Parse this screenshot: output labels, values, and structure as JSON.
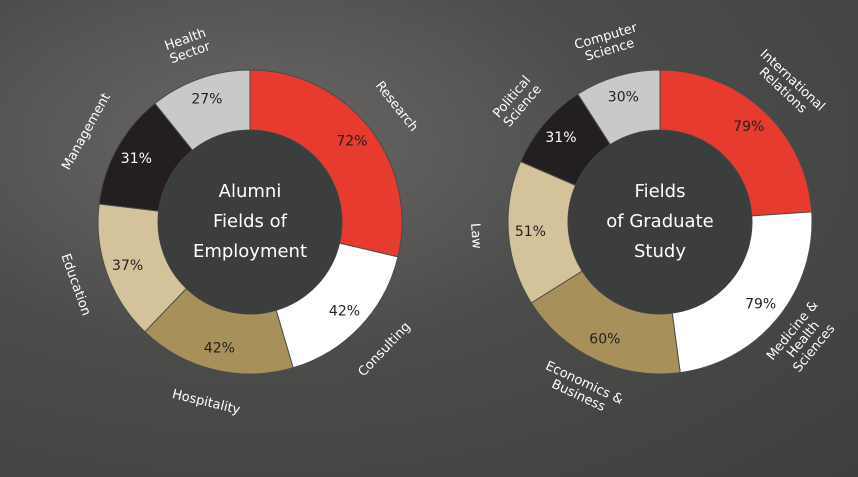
{
  "chart_data": [
    {
      "type": "donut",
      "title": [
        "Alumni",
        "Fields of",
        "Employment"
      ],
      "categories": [
        "Research",
        "Consulting",
        "Hospitality",
        "Education",
        "Management",
        "Health Sector"
      ],
      "values": [
        72,
        42,
        42,
        37,
        31,
        27
      ],
      "value_labels": [
        "72%",
        "42%",
        "42%",
        "37%",
        "31%",
        "27%"
      ],
      "colors": [
        "#e63b2e",
        "#ffffff",
        "#a8905a",
        "#d4c29a",
        "#231f20",
        "#c9c9c9"
      ]
    },
    {
      "type": "donut",
      "title": [
        "Fields",
        "of Graduate",
        "Study"
      ],
      "categories": [
        "International Relations",
        "Medicine & Health Sciences",
        "Economics & Business",
        "Law",
        "Political Science",
        "Computer Science"
      ],
      "values": [
        79,
        79,
        60,
        51,
        31,
        30
      ],
      "value_labels": [
        "79%",
        "79%",
        "60%",
        "51%",
        "31%",
        "30%"
      ],
      "colors": [
        "#e63b2e",
        "#ffffff",
        "#a8905a",
        "#d4c29a",
        "#231f20",
        "#c9c9c9"
      ]
    }
  ]
}
